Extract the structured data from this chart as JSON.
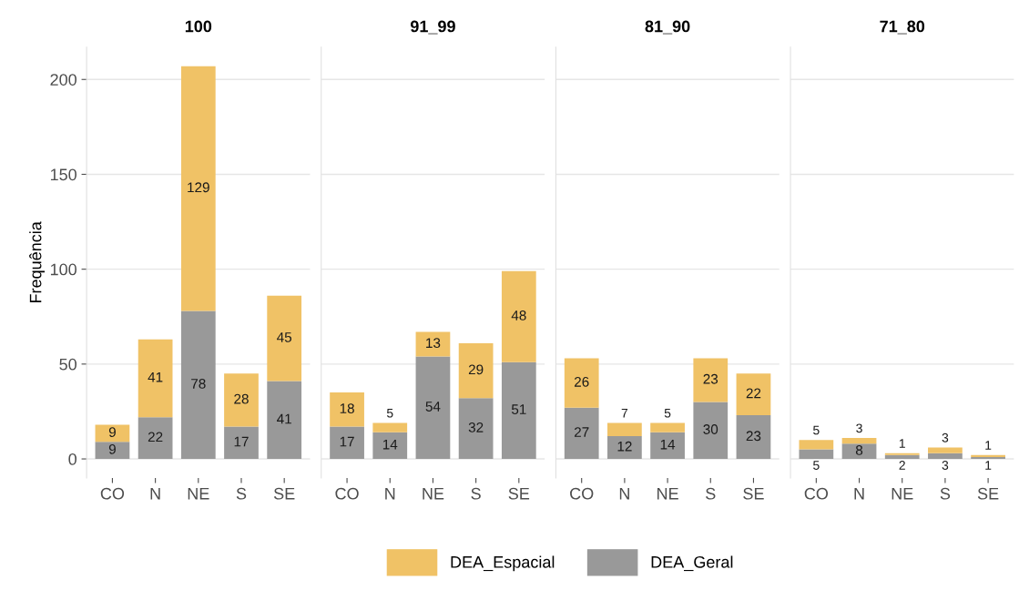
{
  "chart_data": [
    {
      "type": "bar",
      "title": "100",
      "ylabel": "Frequência",
      "categories": [
        "CO",
        "N",
        "NE",
        "S",
        "SE"
      ],
      "stacked": true,
      "data_labels": true,
      "ylim": [
        -10,
        217
      ],
      "yticks": [
        0,
        50,
        100,
        150,
        200
      ],
      "grid": "y",
      "legend": "bottom",
      "series": [
        {
          "name": "DEA_Geral",
          "color": "#999999",
          "values": [
            9,
            22,
            78,
            17,
            41
          ]
        },
        {
          "name": "DEA_Espacial",
          "color": "#f0c266",
          "values": [
            9,
            41,
            129,
            28,
            45
          ]
        }
      ]
    },
    {
      "type": "bar",
      "title": "91_99",
      "categories": [
        "CO",
        "N",
        "NE",
        "S",
        "SE"
      ],
      "stacked": true,
      "data_labels": true,
      "ylim": [
        -10,
        217
      ],
      "yticks": [
        0,
        50,
        100,
        150,
        200
      ],
      "grid": "y",
      "tick_labels": "x",
      "series": [
        {
          "name": "DEA_Geral",
          "color": "#999999",
          "values": [
            17,
            14,
            54,
            32,
            51
          ]
        },
        {
          "name": "DEA_Espacial",
          "color": "#f0c266",
          "values": [
            18,
            5,
            13,
            29,
            48
          ]
        }
      ]
    },
    {
      "type": "bar",
      "title": "81_90",
      "categories": [
        "CO",
        "N",
        "NE",
        "S",
        "SE"
      ],
      "stacked": true,
      "data_labels": true,
      "ylim": [
        -10,
        217
      ],
      "yticks": [
        0,
        50,
        100,
        150,
        200
      ],
      "grid": "y",
      "tick_labels": "x",
      "series": [
        {
          "name": "DEA_Geral",
          "color": "#999999",
          "values": [
            27,
            12,
            14,
            30,
            23
          ]
        },
        {
          "name": "DEA_Espacial",
          "color": "#f0c266",
          "values": [
            26,
            7,
            5,
            23,
            22
          ]
        }
      ]
    },
    {
      "type": "bar",
      "title": "71_80",
      "categories": [
        "CO",
        "N",
        "NE",
        "S",
        "SE"
      ],
      "stacked": true,
      "data_labels": true,
      "ylim": [
        -10,
        217
      ],
      "yticks": [
        0,
        50,
        100,
        150,
        200
      ],
      "grid": "y",
      "tick_labels": "x",
      "series": [
        {
          "name": "DEA_Geral",
          "color": "#999999",
          "values": [
            5,
            8,
            2,
            3,
            1
          ]
        },
        {
          "name": "DEA_Espacial",
          "color": "#f0c266",
          "values": [
            5,
            3,
            1,
            3,
            1
          ]
        }
      ]
    }
  ]
}
